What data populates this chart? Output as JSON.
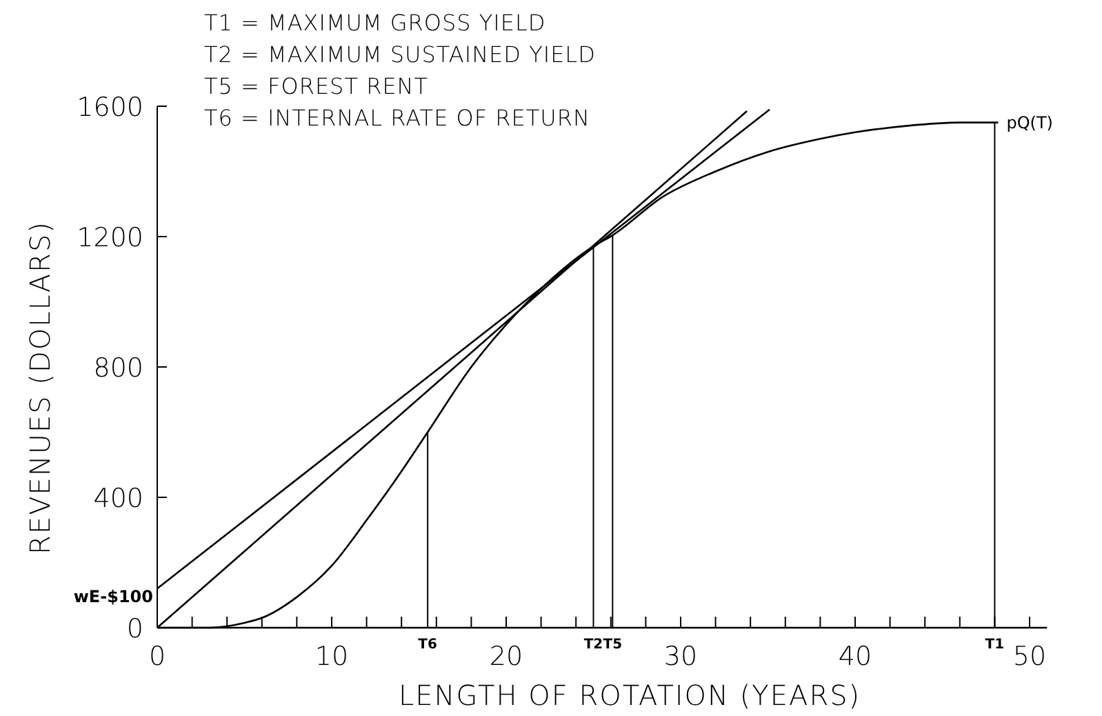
{
  "chart_data": {
    "type": "line",
    "xlabel": "LENGTH OF ROTATION (YEARS)",
    "ylabel": "REVENUES (DOLLARS)",
    "xlim": [
      0,
      51
    ],
    "xticks": [
      0,
      {
        "value": 2,
        "label": null
      },
      {
        "value": 4,
        "label": null
      },
      {
        "value": 6,
        "label": null
      },
      {
        "value": 8,
        "label": null
      },
      10,
      {
        "value": 12,
        "label": null
      },
      {
        "value": 14,
        "label": null
      },
      {
        "value": 16,
        "label": null
      },
      {
        "value": 18,
        "label": null
      },
      20,
      {
        "value": 22,
        "label": null
      },
      {
        "value": 24,
        "label": null
      },
      {
        "value": 26,
        "label": null
      },
      {
        "value": 28,
        "label": null
      },
      30,
      {
        "value": 32,
        "label": null
      },
      {
        "value": 34,
        "label": null
      },
      {
        "value": 36,
        "label": null
      },
      {
        "value": 38,
        "label": null
      },
      40,
      {
        "value": 42,
        "label": null
      },
      {
        "value": 44,
        "label": null
      },
      {
        "value": 46,
        "label": null
      },
      {
        "value": 48,
        "label": null
      },
      50
    ],
    "ylim": [
      0,
      1600
    ],
    "yticks": [
      0,
      400,
      800,
      1200,
      1600
    ],
    "grid": false,
    "marker": "none",
    "line_style": "solid",
    "series": [
      {
        "name": "pQ(T)",
        "color": "#000000",
        "x": [
          0,
          3,
          5,
          6,
          8,
          10,
          12,
          14,
          15.5,
          18,
          20,
          22,
          25,
          26.1,
          29,
          32,
          35,
          38,
          40,
          43,
          46,
          48.2
        ],
        "values": [
          0,
          0,
          15,
          30,
          94,
          190,
          330,
          480,
          600,
          800,
          930,
          1040,
          1170,
          1204,
          1323,
          1400,
          1460,
          1500,
          1520,
          1540,
          1550,
          1550
        ]
      },
      {
        "color": "#000000",
        "x": [
          0,
          33.8
        ],
        "values": [
          0,
          1585
        ]
      },
      {
        "color": "#000000",
        "x": [
          0,
          35.1
        ],
        "values": [
          120,
          1590
        ]
      }
    ],
    "ref_lines": [
      {
        "axis": "x",
        "value": 15.5,
        "label": "T6",
        "color": "#000000"
      },
      {
        "axis": "x",
        "value": 25,
        "label": "T2",
        "color": "#000000"
      },
      {
        "axis": "x",
        "value": 26.1,
        "label": "T5",
        "color": "#000000"
      },
      {
        "axis": "x",
        "value": 48,
        "label": "T1",
        "color": "#000000"
      }
    ],
    "annotations": [
      "T1 = MAXIMUM GROSS YIELD",
      "T2 = MAXIMUM SUSTAINED YIELD",
      "T5 = FOREST RENT",
      "T6 = INTERNAL RATE OF RETURN",
      {
        "text": "wE-$100",
        "x": 0,
        "y": 100
      }
    ]
  }
}
